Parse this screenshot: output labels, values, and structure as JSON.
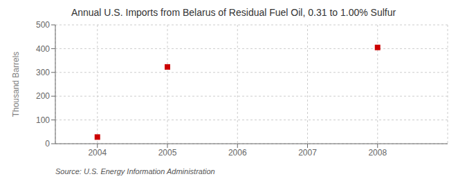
{
  "chart_data": {
    "type": "scatter",
    "title": "Annual U.S. Imports from Belarus of Residual Fuel Oil, 0.31 to 1.00% Sulfur",
    "ylabel": "Thousand Barrels",
    "annotations": [
      "Source: U.S. Energy Information Administration"
    ],
    "x": [
      2004,
      2005,
      2008
    ],
    "values": [
      28,
      323,
      405
    ],
    "xlim": [
      2003.4,
      2009.0
    ],
    "xticks": [
      2004,
      2005,
      2006,
      2007,
      2008
    ],
    "ylim": [
      0,
      500
    ],
    "yticks": [
      0,
      100,
      200,
      300,
      400,
      500
    ],
    "color": "#cc0000",
    "marker": "square",
    "grid": true
  }
}
